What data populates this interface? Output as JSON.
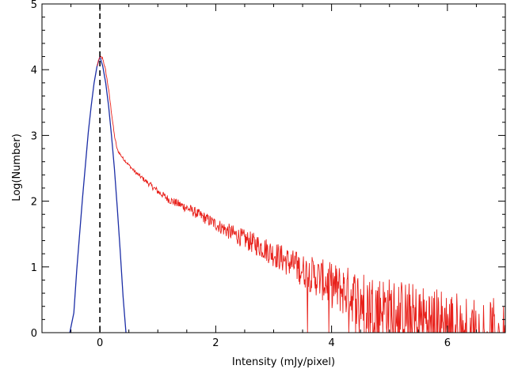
{
  "chart_data": {
    "type": "line",
    "title": "",
    "xlabel": "Intensity (mJy/pixel)",
    "ylabel": "Log(Number)",
    "xlim": [
      -1,
      7
    ],
    "ylim": [
      0,
      5
    ],
    "x_ticks": [
      0,
      2,
      4,
      6
    ],
    "y_ticks": [
      0,
      1,
      2,
      3,
      4,
      5
    ],
    "x_minor_step": 0.5,
    "y_minor_step": 0.2,
    "grid": false,
    "reference_line": {
      "x": 0,
      "style": "dashed",
      "color": "#000000"
    },
    "series": [
      {
        "color": "#1c2ea6",
        "style": "gaussian fit",
        "x": [
          -0.52,
          -0.45,
          -0.4,
          -0.35,
          -0.3,
          -0.25,
          -0.2,
          -0.15,
          -0.1,
          -0.05,
          0.0,
          0.05,
          0.1,
          0.15,
          0.2,
          0.25,
          0.3,
          0.35,
          0.4,
          0.45
        ],
        "y": [
          0.0,
          0.3,
          0.95,
          1.5,
          2.05,
          2.55,
          3.05,
          3.45,
          3.8,
          4.05,
          4.2,
          4.05,
          3.8,
          3.45,
          3.0,
          2.5,
          1.9,
          1.25,
          0.55,
          0.0
        ]
      },
      {
        "color": "#e8211b",
        "style": "noisy histogram",
        "x": [
          -0.05,
          0.0,
          0.05,
          0.1,
          0.15,
          0.2,
          0.25,
          0.3,
          0.4,
          0.5,
          0.6,
          0.8,
          1.0,
          1.2,
          1.5,
          1.8,
          2.0,
          2.2,
          2.5,
          2.8,
          3.0,
          3.2,
          3.5,
          3.8,
          4.0,
          4.3,
          4.5,
          5.0,
          5.5,
          6.0,
          6.5,
          7.0
        ],
        "y": [
          4.05,
          4.2,
          4.17,
          3.98,
          3.7,
          3.35,
          3.0,
          2.78,
          2.65,
          2.55,
          2.45,
          2.3,
          2.15,
          2.02,
          1.9,
          1.75,
          1.65,
          1.55,
          1.42,
          1.3,
          1.2,
          1.1,
          0.95,
          0.82,
          0.72,
          0.6,
          0.5,
          0.35,
          0.22,
          0.12,
          0.05,
          0.0
        ],
        "noise_band": {
          "x": [
            0.5,
            1.0,
            2.0,
            2.5,
            3.0,
            3.5,
            4.0,
            4.5,
            5.0,
            6.0,
            7.0
          ],
          "amplitude": [
            0.02,
            0.05,
            0.1,
            0.15,
            0.2,
            0.25,
            0.35,
            0.45,
            0.5,
            0.55,
            0.5
          ]
        }
      }
    ]
  }
}
